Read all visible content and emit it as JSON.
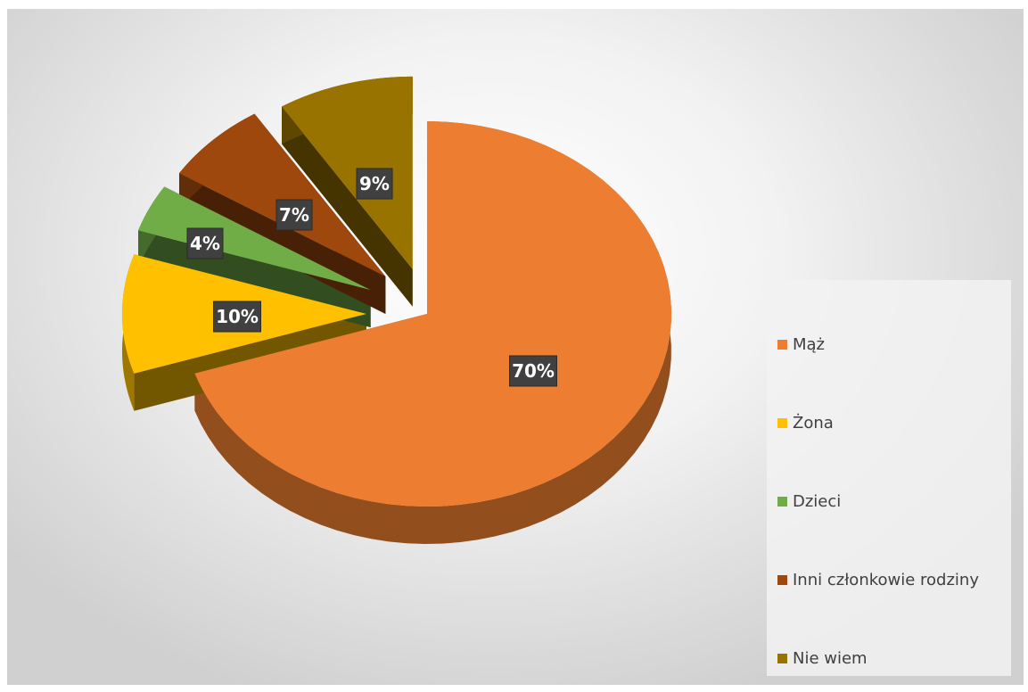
{
  "chart_data": {
    "type": "pie",
    "style": "3d-exploded",
    "categories": [
      "Mąż",
      "Żona",
      "Dzieci",
      "Inni członkowie rodziny",
      "Nie wiem"
    ],
    "values": [
      70,
      10,
      4,
      7,
      9
    ],
    "labels": [
      "70%",
      "10%",
      "4%",
      "7%",
      "9%"
    ],
    "colors": [
      "#ED7D31",
      "#FFC000",
      "#70AD47",
      "#9E480E",
      "#997300"
    ],
    "legend_position": "right",
    "title": ""
  }
}
